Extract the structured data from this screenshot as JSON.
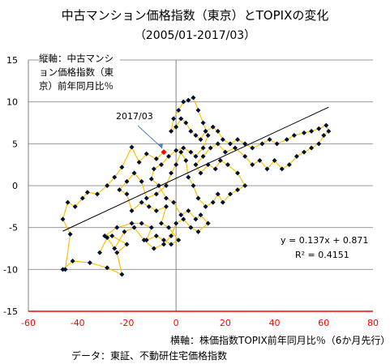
{
  "title": "中古マンション価格指数（東京）とTOPIXの変化",
  "subtitle": "（2005/01-2017/03）",
  "y_axis_label": "縦軸：中古マンション価格指数（東京）前年同月比％",
  "x_axis_label": "横軸：株価指数TOPIX前年同月比％（6か月先行）",
  "data_source": "データ：東証、不動研住宅価格指数",
  "annotation": "2017/03",
  "trend_equation": "y = 0.137x + 0.871",
  "r_squared": "R² = 0.4151",
  "colors": {
    "line": "#ffc000",
    "marker": "#001133",
    "highlight": "#ff0000",
    "trend": "#000000",
    "grid": "#9a9a9a",
    "axis_red": "#ff0000",
    "arrow": "#4f81bd"
  },
  "chart_data": {
    "type": "scatter",
    "title": "中古マンション価格指数（東京）とTOPIXの変化",
    "subtitle": "（2005/01-2017/03）",
    "xlabel": "横軸：株価指数TOPIX前年同月比％（6か月先行）",
    "ylabel": "縦軸：中古マンション価格指数（東京）前年同月比％",
    "xlim": [
      -60,
      80
    ],
    "ylim": [
      -15,
      15
    ],
    "xticks": [
      -60,
      -40,
      -20,
      0,
      20,
      40,
      60,
      80
    ],
    "yticks": [
      -15,
      -10,
      -5,
      0,
      5,
      10,
      15
    ],
    "grid": true,
    "connected": true,
    "trendline": {
      "slope": 0.137,
      "intercept": 0.871,
      "x_range": [
        -46,
        62
      ],
      "r2": 0.4151
    },
    "highlight": {
      "label": "2017/03",
      "x": -5,
      "y": 4.0
    },
    "points": [
      [
        -5,
        4.0
      ],
      [
        -8,
        3.2
      ],
      [
        -12,
        3.8
      ],
      [
        -15,
        2.8
      ],
      [
        -18,
        4.6
      ],
      [
        -22,
        2.2
      ],
      [
        -25,
        1.0
      ],
      [
        -28,
        0.0
      ],
      [
        -32,
        -1.0
      ],
      [
        -36,
        -0.8
      ],
      [
        -38,
        -1.5
      ],
      [
        -41,
        -2.5
      ],
      [
        -44,
        -2.0
      ],
      [
        -46,
        -4.0
      ],
      [
        -43,
        -5.8
      ],
      [
        -45,
        -10.0
      ],
      [
        -46,
        -10.0
      ],
      [
        -42,
        -9.0
      ],
      [
        -35,
        -9.2
      ],
      [
        -28,
        -9.8
      ],
      [
        -22,
        -10.6
      ],
      [
        -24,
        -8.0
      ],
      [
        -20,
        -7.0
      ],
      [
        -26,
        -6.0
      ],
      [
        -29,
        -6.0
      ],
      [
        -24,
        -5.0
      ],
      [
        -18,
        -4.5
      ],
      [
        -14,
        -4.5
      ],
      [
        -10,
        -5.0
      ],
      [
        -12,
        -6.5
      ],
      [
        -8,
        -6.0
      ],
      [
        -5,
        -6.5
      ],
      [
        -2,
        -7.0
      ],
      [
        1,
        -6.5
      ],
      [
        -3,
        -5.0
      ],
      [
        -6,
        -4.5
      ],
      [
        -4,
        -2.5
      ],
      [
        -8,
        -3.0
      ],
      [
        -11,
        -2.5
      ],
      [
        -14,
        -2.0
      ],
      [
        -18,
        -3.0
      ],
      [
        -20,
        -1.0
      ],
      [
        -23,
        -0.5
      ],
      [
        -20,
        0.5
      ],
      [
        -17,
        1.5
      ],
      [
        -14,
        0.5
      ],
      [
        -12,
        -1.5
      ],
      [
        -8,
        -1.0
      ],
      [
        -4,
        0.0
      ],
      [
        -2,
        1.5
      ],
      [
        0,
        2.5
      ],
      [
        2,
        4.0
      ],
      [
        4,
        3.0
      ],
      [
        5,
        1.0
      ],
      [
        7,
        0.0
      ],
      [
        9,
        -1.5
      ],
      [
        12,
        -2.5
      ],
      [
        15,
        -2.0
      ],
      [
        17,
        -1.0
      ],
      [
        19,
        -2.0
      ],
      [
        22,
        -1.0
      ],
      [
        25,
        -0.5
      ],
      [
        28,
        0.0
      ],
      [
        25,
        1.5
      ],
      [
        21,
        2.5
      ],
      [
        18,
        3.0
      ],
      [
        16,
        2.0
      ],
      [
        13,
        2.5
      ],
      [
        10,
        1.5
      ],
      [
        8,
        2.5
      ],
      [
        11,
        3.5
      ],
      [
        14,
        4.5
      ],
      [
        17,
        5.0
      ],
      [
        20,
        4.0
      ],
      [
        24,
        4.5
      ],
      [
        28,
        3.5
      ],
      [
        31,
        2.5
      ],
      [
        34,
        3.0
      ],
      [
        37,
        2.0
      ],
      [
        40,
        3.0
      ],
      [
        43,
        2.0
      ],
      [
        46,
        2.5
      ],
      [
        49,
        3.5
      ],
      [
        52,
        4.0
      ],
      [
        55,
        4.5
      ],
      [
        58,
        5.0
      ],
      [
        60,
        6.0
      ],
      [
        62,
        6.5
      ],
      [
        61,
        7.2
      ],
      [
        58,
        6.8
      ],
      [
        55,
        6.5
      ],
      [
        52,
        6.3
      ],
      [
        48,
        6.0
      ],
      [
        45,
        5.5
      ],
      [
        41,
        5.0
      ],
      [
        38,
        5.5
      ],
      [
        35,
        5.0
      ],
      [
        31,
        4.5
      ],
      [
        28,
        5.0
      ],
      [
        25,
        5.5
      ],
      [
        22,
        5.0
      ],
      [
        19,
        5.5
      ],
      [
        17,
        6.5
      ],
      [
        15,
        7.0
      ],
      [
        12,
        6.5
      ],
      [
        10,
        5.5
      ],
      [
        8,
        6.0
      ],
      [
        6,
        6.5
      ],
      [
        4,
        7.5
      ],
      [
        2,
        8.0
      ],
      [
        0,
        7.0
      ],
      [
        -2,
        6.5
      ],
      [
        -1,
        8.0
      ],
      [
        1,
        9.0
      ],
      [
        3,
        10.0
      ],
      [
        5,
        10.2
      ],
      [
        7,
        10.5
      ],
      [
        9,
        9.0
      ],
      [
        11,
        7.5
      ],
      [
        13,
        6.0
      ],
      [
        11,
        4.5
      ],
      [
        8,
        3.5
      ],
      [
        6,
        4.0
      ],
      [
        3,
        4.5
      ],
      [
        0,
        4.2
      ],
      [
        -3,
        3.5
      ],
      [
        -6,
        2.5
      ],
      [
        -9,
        2.0
      ],
      [
        -10,
        0.8
      ],
      [
        -7,
        0.0
      ],
      [
        -4,
        -1.5
      ],
      [
        -1,
        -2.0
      ],
      [
        2,
        -3.5
      ],
      [
        5,
        -3.0
      ],
      [
        8,
        -4.0
      ],
      [
        10,
        -3.5
      ],
      [
        13,
        -4.5
      ],
      [
        9,
        -5.5
      ],
      [
        6,
        -5.0
      ],
      [
        3,
        -4.0
      ],
      [
        0,
        -4.5
      ],
      [
        -2,
        -6.0
      ],
      [
        -5,
        -7.0
      ],
      [
        -9,
        -7.5
      ],
      [
        -13,
        -6.5
      ],
      [
        -17,
        -5.0
      ],
      [
        -21,
        -5.5
      ],
      [
        -25,
        -7.5
      ],
      [
        -28,
        -6.2
      ],
      [
        -31,
        -8.0
      ]
    ]
  }
}
